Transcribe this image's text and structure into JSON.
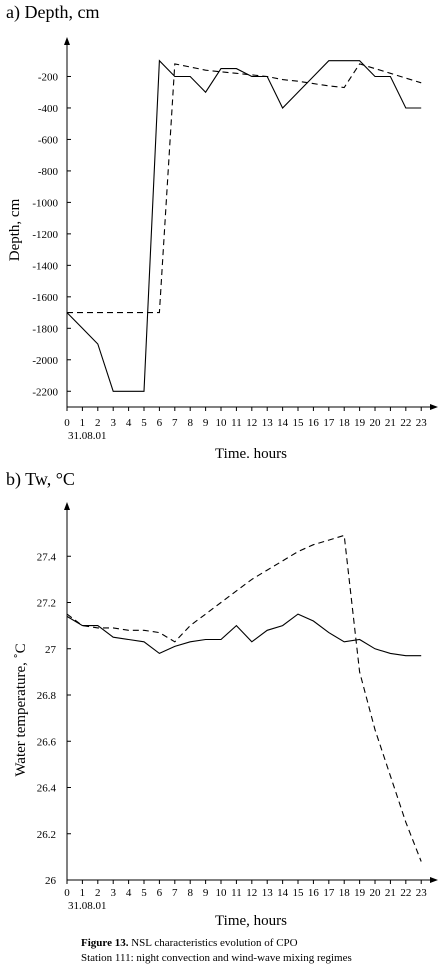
{
  "caption": {
    "bold": "Figure 13.",
    "rest": " NSL characteristics evolution of CPO",
    "line2": "Station 111: night convection and wind-wave mixing regimes"
  },
  "chart_data": [
    {
      "type": "line",
      "title": "a) Depth, cm",
      "ylabel": "Depth, cm",
      "xlabel": "Time. hours",
      "x_sublabel": "31.08.01",
      "x": [
        0,
        1,
        2,
        3,
        4,
        5,
        6,
        7,
        8,
        9,
        10,
        11,
        12,
        13,
        14,
        15,
        16,
        17,
        18,
        19,
        20,
        21,
        22,
        23
      ],
      "xlim": [
        0,
        23.7
      ],
      "ylim": [
        -2300,
        0
      ],
      "yticks": [
        -200,
        -400,
        -600,
        -800,
        -1000,
        -1200,
        -1400,
        -1600,
        -1800,
        -2000,
        -2200
      ],
      "grid": false,
      "series": [
        {
          "style": "solid",
          "values": [
            -1700,
            -1800,
            -1900,
            -2200,
            -2200,
            -2200,
            -100,
            -200,
            -200,
            -300,
            -150,
            -150,
            -200,
            -200,
            -400,
            -300,
            -200,
            -100,
            -100,
            -100,
            -200,
            -200,
            -400,
            -400
          ]
        },
        {
          "style": "dashed",
          "values": [
            -1700,
            -1700,
            -1700,
            -1700,
            -1700,
            -1700,
            -1700,
            -120,
            -140,
            -160,
            -170,
            -180,
            -190,
            -200,
            -220,
            -230,
            -245,
            -260,
            -270,
            -120,
            -150,
            -180,
            -210,
            -240
          ]
        }
      ]
    },
    {
      "type": "line",
      "title": "b) Tw, °C",
      "ylabel": "Water temperature, ˚C",
      "xlabel": "Time, hours",
      "x_sublabel": "31.08.01",
      "x": [
        0,
        1,
        2,
        3,
        4,
        5,
        6,
        7,
        8,
        9,
        10,
        11,
        12,
        13,
        14,
        15,
        16,
        17,
        18,
        19,
        20,
        21,
        22,
        23
      ],
      "xlim": [
        0,
        23.7
      ],
      "ylim": [
        26.0,
        27.6
      ],
      "yticks": [
        26,
        26.2,
        26.4,
        26.6,
        26.8,
        27,
        27.2,
        27.4
      ],
      "grid": false,
      "series": [
        {
          "style": "solid",
          "values": [
            27.14,
            27.1,
            27.1,
            27.05,
            27.04,
            27.03,
            26.98,
            27.01,
            27.03,
            27.04,
            27.04,
            27.1,
            27.03,
            27.08,
            27.1,
            27.15,
            27.12,
            27.07,
            27.03,
            27.04,
            27.0,
            26.98,
            26.97,
            26.97
          ]
        },
        {
          "style": "dashed",
          "values": [
            27.15,
            27.1,
            27.09,
            27.09,
            27.08,
            27.08,
            27.07,
            27.03,
            27.1,
            27.15,
            27.2,
            27.25,
            27.3,
            27.34,
            27.38,
            27.42,
            27.45,
            27.47,
            27.49,
            26.9,
            26.65,
            26.45,
            26.25,
            26.08
          ]
        }
      ]
    }
  ]
}
